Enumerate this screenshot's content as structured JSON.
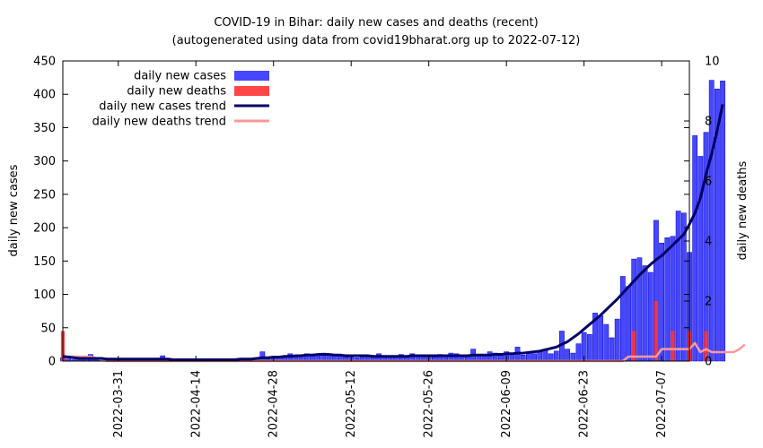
{
  "chart_data": {
    "type": "bar",
    "title": "COVID-19 in Bihar: daily new cases and deaths (recent)",
    "subtitle": "(autogenerated using data from covid19bharat.org up to 2022-07-12)",
    "ylabel": "daily new cases",
    "y2label": "daily new deaths",
    "ylim": [
      0,
      450
    ],
    "y2lim": [
      0,
      10
    ],
    "yticks": [
      "0",
      "50",
      "100",
      "150",
      "200",
      "250",
      "300",
      "350",
      "400",
      "450"
    ],
    "y2ticks": [
      "0",
      "2",
      "4",
      "6",
      "8",
      "10"
    ],
    "xlim": [
      "2022-03-21",
      "2022-07-12"
    ],
    "xticks": [
      "2022-03-31",
      "2022-04-14",
      "2022-04-28",
      "2022-05-12",
      "2022-05-26",
      "2022-06-09",
      "2022-06-23",
      "2022-07-07"
    ],
    "grid": false,
    "legend_position": "top-left",
    "legend": [
      {
        "label": "daily new cases",
        "color": "#3333ff",
        "kind": "bar"
      },
      {
        "label": "daily new deaths",
        "color": "#ff3333",
        "kind": "bar"
      },
      {
        "label": "daily new cases trend",
        "color": "#000066",
        "kind": "line"
      },
      {
        "label": "daily new deaths trend",
        "color": "#ff9999",
        "kind": "line"
      }
    ],
    "series": [
      {
        "name": "daily new cases",
        "axis": "left",
        "color": "#3333ff",
        "start_date": "2022-03-21",
        "values": [
          5,
          3,
          2,
          3,
          3,
          10,
          4,
          3,
          2,
          3,
          2,
          2,
          4,
          1,
          2,
          3,
          4,
          3,
          8,
          2,
          1,
          2,
          1,
          3,
          1,
          2,
          1,
          2,
          3,
          2,
          2,
          3,
          4,
          3,
          2,
          5,
          14,
          3,
          4,
          6,
          6,
          11,
          6,
          9,
          11,
          9,
          8,
          12,
          10,
          9,
          8,
          6,
          7,
          5,
          8,
          9,
          6,
          11,
          8,
          6,
          7,
          10,
          8,
          11,
          8,
          9,
          8,
          6,
          10,
          9,
          12,
          11,
          7,
          9,
          18,
          8,
          10,
          14,
          12,
          9,
          14,
          12,
          21,
          9,
          13,
          11,
          15,
          17,
          11,
          15,
          45,
          18,
          12,
          26,
          43,
          40,
          72,
          68,
          55,
          35,
          63,
          127,
          112,
          153,
          155,
          143,
          133,
          211,
          177,
          185,
          187,
          225,
          222,
          163,
          338,
          307,
          343,
          421,
          408,
          420
        ]
      },
      {
        "name": "daily new deaths",
        "axis": "right",
        "color": "#ff3333",
        "start_date": "2022-03-21",
        "values": [
          1,
          0,
          0,
          0,
          0,
          0,
          0,
          0,
          0,
          0,
          0,
          0,
          0,
          0,
          0,
          0,
          0,
          0,
          0,
          0,
          0,
          0,
          0,
          0,
          0,
          0,
          0,
          0,
          0,
          0,
          0,
          0,
          0,
          0,
          0,
          0,
          0,
          0,
          0,
          0,
          0,
          0,
          0,
          0,
          0,
          0,
          0,
          0,
          0,
          0,
          0,
          0,
          0,
          0,
          0,
          0,
          0,
          0,
          0,
          0,
          0,
          0,
          0,
          0,
          0,
          0,
          0,
          0,
          0,
          0,
          0,
          0,
          0,
          0,
          0,
          0,
          0,
          0,
          0,
          0,
          0,
          0,
          0,
          0,
          0,
          0,
          0,
          0,
          0,
          0,
          0,
          0,
          0,
          0,
          0,
          0,
          0,
          0,
          0,
          0,
          0,
          0,
          0,
          1,
          0,
          0,
          0,
          2,
          0,
          0,
          1,
          0,
          0,
          1,
          0,
          0,
          1,
          0,
          0,
          0
        ]
      },
      {
        "name": "daily new cases trend",
        "axis": "left",
        "color": "#000066",
        "start_date": "2022-03-21",
        "values": [
          7,
          6,
          5,
          4,
          4,
          4,
          4,
          4,
          3,
          3,
          3,
          3,
          3,
          3,
          3,
          3,
          3,
          3,
          3,
          3,
          2,
          2,
          2,
          2,
          2,
          2,
          2,
          2,
          2,
          2,
          2,
          2,
          3,
          3,
          3,
          4,
          5,
          5,
          6,
          6,
          7,
          7,
          8,
          8,
          9,
          9,
          10,
          10,
          10,
          9,
          9,
          8,
          8,
          8,
          8,
          8,
          7,
          7,
          7,
          7,
          7,
          7,
          7,
          8,
          8,
          8,
          8,
          8,
          8,
          8,
          8,
          8,
          8,
          8,
          9,
          9,
          9,
          9,
          10,
          10,
          11,
          11,
          12,
          12,
          13,
          14,
          15,
          17,
          19,
          21,
          25,
          29,
          35,
          41,
          48,
          55,
          62,
          69,
          77,
          85,
          93,
          102,
          111,
          120,
          129,
          137,
          145,
          152,
          158,
          166,
          174,
          182,
          190,
          205,
          222,
          245,
          280,
          310,
          345,
          385
        ]
      },
      {
        "name": "daily new deaths trend",
        "axis": "right",
        "color": "#ff9999",
        "start_date": "2022-03-21",
        "values": [
          0.15,
          0.15,
          0.15,
          0.15,
          0.15,
          0.15,
          0.1,
          0.05,
          0,
          0,
          0,
          0,
          0,
          0,
          0,
          0,
          0,
          0,
          0,
          0,
          0,
          0,
          0,
          0,
          0,
          0,
          0,
          0,
          0,
          0,
          0,
          0,
          0,
          0,
          0,
          0,
          0,
          0,
          0,
          0,
          0,
          0,
          0,
          0,
          0,
          0,
          0,
          0,
          0,
          0,
          0,
          0,
          0,
          0,
          0,
          0,
          0,
          0,
          0,
          0,
          0,
          0,
          0,
          0,
          0,
          0,
          0,
          0,
          0,
          0,
          0,
          0,
          0,
          0,
          0,
          0,
          0,
          0,
          0,
          0,
          0,
          0,
          0,
          0,
          0,
          0,
          0,
          0,
          0,
          0,
          0,
          0,
          0,
          0,
          0,
          0,
          0,
          0,
          0,
          0,
          0,
          0,
          0.15,
          0.15,
          0.15,
          0.15,
          0.15,
          0.15,
          0.4,
          0.4,
          0.4,
          0.4,
          0.4,
          0.4,
          0.6,
          0.3,
          0.4,
          0.3,
          0.3,
          0.3,
          0.3,
          0.3,
          0.4,
          0.55
        ]
      }
    ]
  }
}
